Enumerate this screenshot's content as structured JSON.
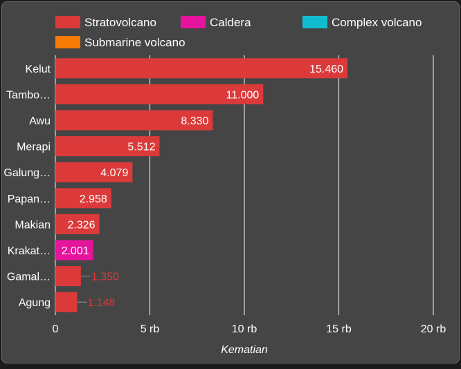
{
  "chart_data": {
    "type": "bar",
    "orientation": "horizontal",
    "legend": [
      {
        "label": "Stratovolcano",
        "color": "#dc3a3a"
      },
      {
        "label": "Caldera",
        "color": "#e6149c"
      },
      {
        "label": "Complex volcano",
        "color": "#12bcd0"
      },
      {
        "label": "Submarine volcano",
        "color": "#f77b06"
      }
    ],
    "categories": [
      "Kelut",
      "Tambo…",
      "Awu",
      "Merapi",
      "Galung…",
      "Papan…",
      "Makian",
      "Krakat…",
      "Gamal…",
      "Agung"
    ],
    "values": [
      15460,
      11000,
      8330,
      5512,
      4079,
      2958,
      2326,
      2001,
      1350,
      1148
    ],
    "value_labels": [
      "15.460",
      "11.000",
      "8.330",
      "5.512",
      "4.079",
      "2.958",
      "2.326",
      "2.001",
      "1.350",
      "1.148"
    ],
    "bar_types": [
      "Stratovolcano",
      "Stratovolcano",
      "Stratovolcano",
      "Stratovolcano",
      "Stratovolcano",
      "Stratovolcano",
      "Stratovolcano",
      "Caldera",
      "Stratovolcano",
      "Stratovolcano"
    ],
    "xlim": [
      0,
      20000
    ],
    "x_ticks": [
      0,
      5000,
      10000,
      15000,
      20000
    ],
    "x_tick_labels": [
      "0",
      "5 rb",
      "10 rb",
      "15 rb",
      "20 rb"
    ],
    "xlabel": "Kematian",
    "grid": true,
    "legend_position": "top"
  }
}
